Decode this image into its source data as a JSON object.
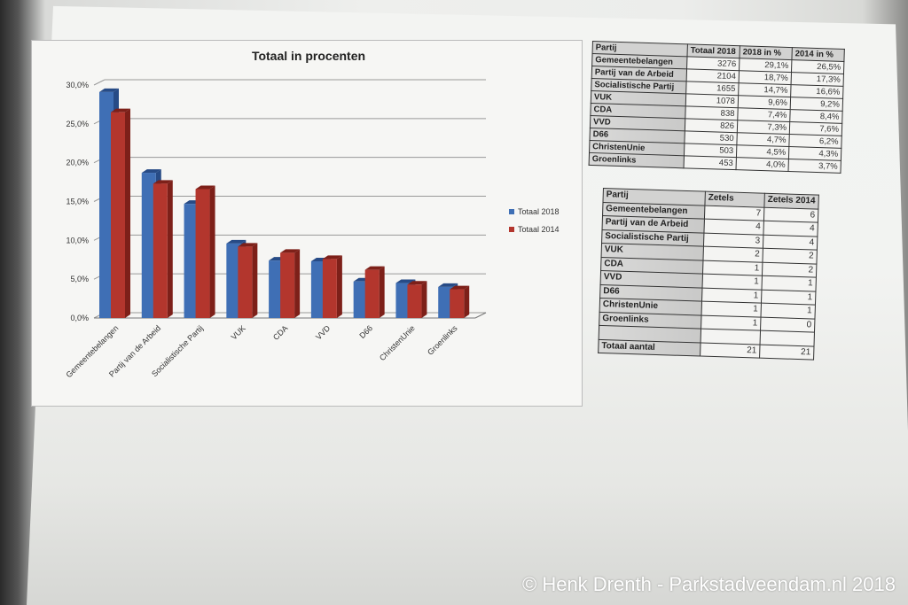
{
  "chart_data": {
    "type": "bar",
    "title": "Totaal in procenten",
    "categories": [
      "Gemeentebelangen",
      "Partij van de Arbeid",
      "Socialistische Partij",
      "VUK",
      "CDA",
      "VVD",
      "D66",
      "ChristenUnie",
      "Groenlinks"
    ],
    "series": [
      {
        "name": "Totaal 2018",
        "values": [
          29.1,
          18.7,
          14.7,
          9.6,
          7.4,
          7.3,
          4.7,
          4.5,
          4.0
        ],
        "color": "#3f6fb5"
      },
      {
        "name": "Totaal 2014",
        "values": [
          26.5,
          17.3,
          16.6,
          9.2,
          8.4,
          7.6,
          6.2,
          4.3,
          3.7
        ],
        "color": "#b3362d"
      }
    ],
    "ylim": [
      0,
      30
    ],
    "yticks": [
      "0,0%",
      "5,0%",
      "10,0%",
      "15,0%",
      "20,0%",
      "25,0%",
      "30,0%"
    ],
    "grid": true,
    "legend": "right"
  },
  "table_votes": {
    "headers": [
      "Partij",
      "Totaal 2018",
      "2018 in %",
      "2014 in %"
    ],
    "rows": [
      [
        "Gemeentebelangen",
        "3276",
        "29,1%",
        "26,5%"
      ],
      [
        "Partij van de Arbeid",
        "2104",
        "18,7%",
        "17,3%"
      ],
      [
        "Socialistische Partij",
        "1655",
        "14,7%",
        "16,6%"
      ],
      [
        "VUK",
        "1078",
        "9,6%",
        "9,2%"
      ],
      [
        "CDA",
        "838",
        "7,4%",
        "8,4%"
      ],
      [
        "VVD",
        "826",
        "7,3%",
        "7,6%"
      ],
      [
        "D66",
        "530",
        "4,7%",
        "6,2%"
      ],
      [
        "ChristenUnie",
        "503",
        "4,5%",
        "4,3%"
      ],
      [
        "Groenlinks",
        "453",
        "4,0%",
        "3,7%"
      ]
    ]
  },
  "table_seats": {
    "headers": [
      "Partij",
      "Zetels",
      "Zetels 2014"
    ],
    "rows": [
      [
        "Gemeentebelangen",
        "7",
        "6"
      ],
      [
        "Partij van de Arbeid",
        "4",
        "4"
      ],
      [
        "Socialistische Partij",
        "3",
        "4"
      ],
      [
        "VUK",
        "2",
        "2"
      ],
      [
        "CDA",
        "1",
        "2"
      ],
      [
        "VVD",
        "1",
        "1"
      ],
      [
        "D66",
        "1",
        "1"
      ],
      [
        "ChristenUnie",
        "1",
        "1"
      ],
      [
        "Groenlinks",
        "1",
        "0"
      ],
      [
        "",
        "",
        ""
      ],
      [
        "Totaal aantal",
        "21",
        "21"
      ]
    ]
  },
  "watermark": "© Henk Drenth - Parkstadveendam.nl 2018"
}
